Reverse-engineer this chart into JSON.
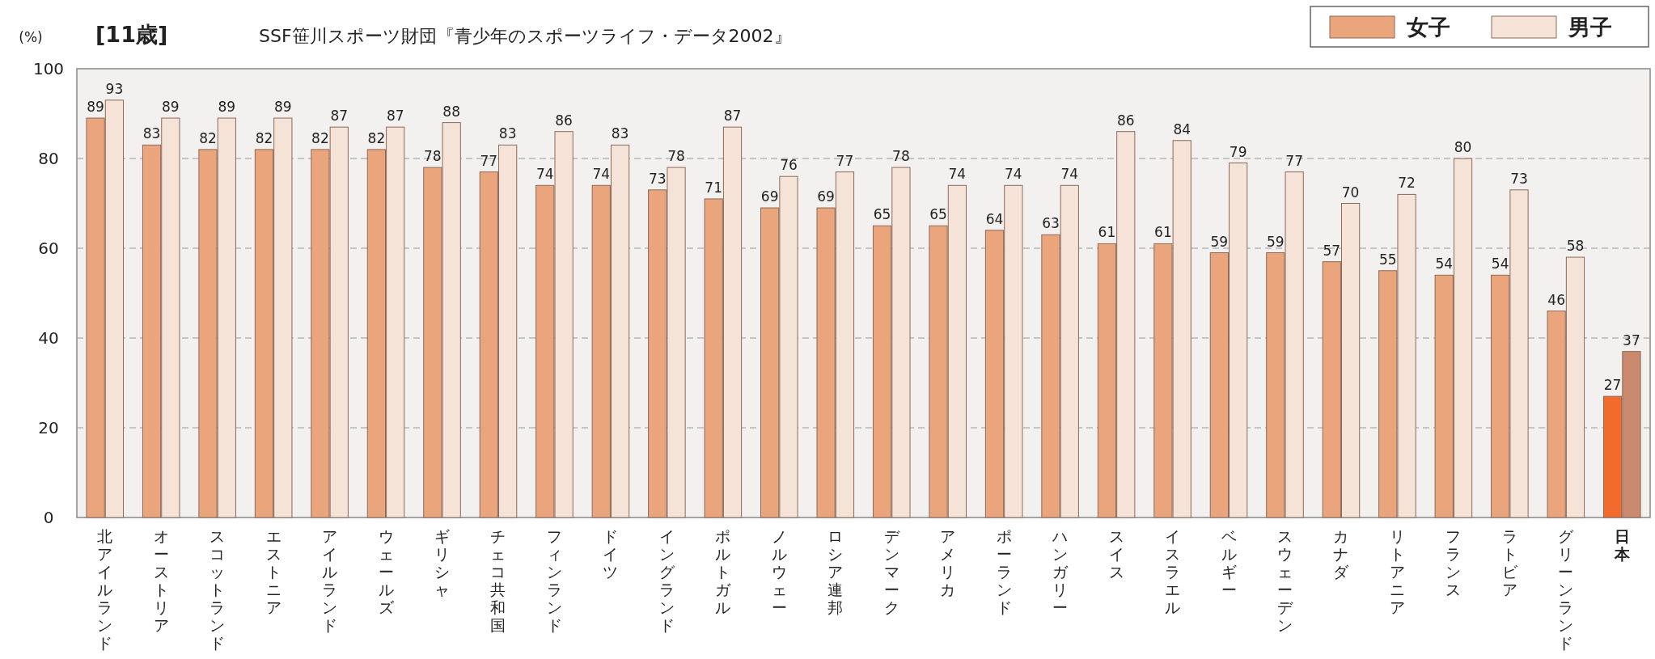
{
  "chart_data": {
    "type": "bar",
    "title": "[11歳]",
    "ylabel": "(%)",
    "annotations": [
      "SSF笹川スポーツ財団『青少年のスポーツライフ・データ2002』"
    ],
    "categories": [
      "北アイルランド",
      "オーストリア",
      "スコットランド",
      "エストニア",
      "アイルランド",
      "ウェールズ",
      "ギリシャ",
      "チェコ共和国",
      "フィンランド",
      "ドイツ",
      "イングランド",
      "ポルトガル",
      "ノルウェー",
      "ロシア連邦",
      "デンマーク",
      "アメリカ",
      "ポーランド",
      "ハンガリー",
      "スイス",
      "イスラエル",
      "ベルギー",
      "スウェーデン",
      "カナダ",
      "リトアニア",
      "フランス",
      "ラトビア",
      "グリーンランド",
      "日本"
    ],
    "series": [
      {
        "name": "女子",
        "color": "#eba57c",
        "colors": [
          "#eba57c",
          "#eba57c",
          "#eba57c",
          "#eba57c",
          "#eba57c",
          "#eba57c",
          "#eba57c",
          "#eba57c",
          "#eba57c",
          "#eba57c",
          "#eba57c",
          "#eba57c",
          "#eba57c",
          "#eba57c",
          "#eba57c",
          "#eba57c",
          "#eba57c",
          "#eba57c",
          "#eba57c",
          "#eba57c",
          "#eba57c",
          "#eba57c",
          "#eba57c",
          "#eba57c",
          "#eba57c",
          "#eba57c",
          "#eba57c",
          "#f26a2c"
        ],
        "values": [
          89,
          83,
          82,
          82,
          82,
          82,
          78,
          77,
          74,
          74,
          73,
          71,
          69,
          69,
          65,
          65,
          64,
          63,
          61,
          61,
          59,
          59,
          57,
          55,
          54,
          54,
          46,
          27
        ]
      },
      {
        "name": "男子",
        "color": "#f5e3d8",
        "colors": [
          "#f5e3d8",
          "#f5e3d8",
          "#f5e3d8",
          "#f5e3d8",
          "#f5e3d8",
          "#f5e3d8",
          "#f5e3d8",
          "#f5e3d8",
          "#f5e3d8",
          "#f5e3d8",
          "#f5e3d8",
          "#f5e3d8",
          "#f5e3d8",
          "#f5e3d8",
          "#f5e3d8",
          "#f5e3d8",
          "#f5e3d8",
          "#f5e3d8",
          "#f5e3d8",
          "#f5e3d8",
          "#f5e3d8",
          "#f5e3d8",
          "#f5e3d8",
          "#f5e3d8",
          "#f5e3d8",
          "#f5e3d8",
          "#f5e3d8",
          "#c98a70"
        ],
        "values": [
          93,
          89,
          89,
          89,
          87,
          87,
          88,
          83,
          86,
          83,
          78,
          87,
          76,
          77,
          78,
          74,
          74,
          74,
          86,
          84,
          79,
          77,
          70,
          72,
          80,
          73,
          58,
          37
        ]
      }
    ],
    "ylim": [
      0,
      100
    ],
    "yticks": [
      0,
      20,
      40,
      60,
      80,
      100
    ],
    "grid": "y",
    "line_style": "dashed",
    "legend": "top right",
    "data_labels": true
  }
}
